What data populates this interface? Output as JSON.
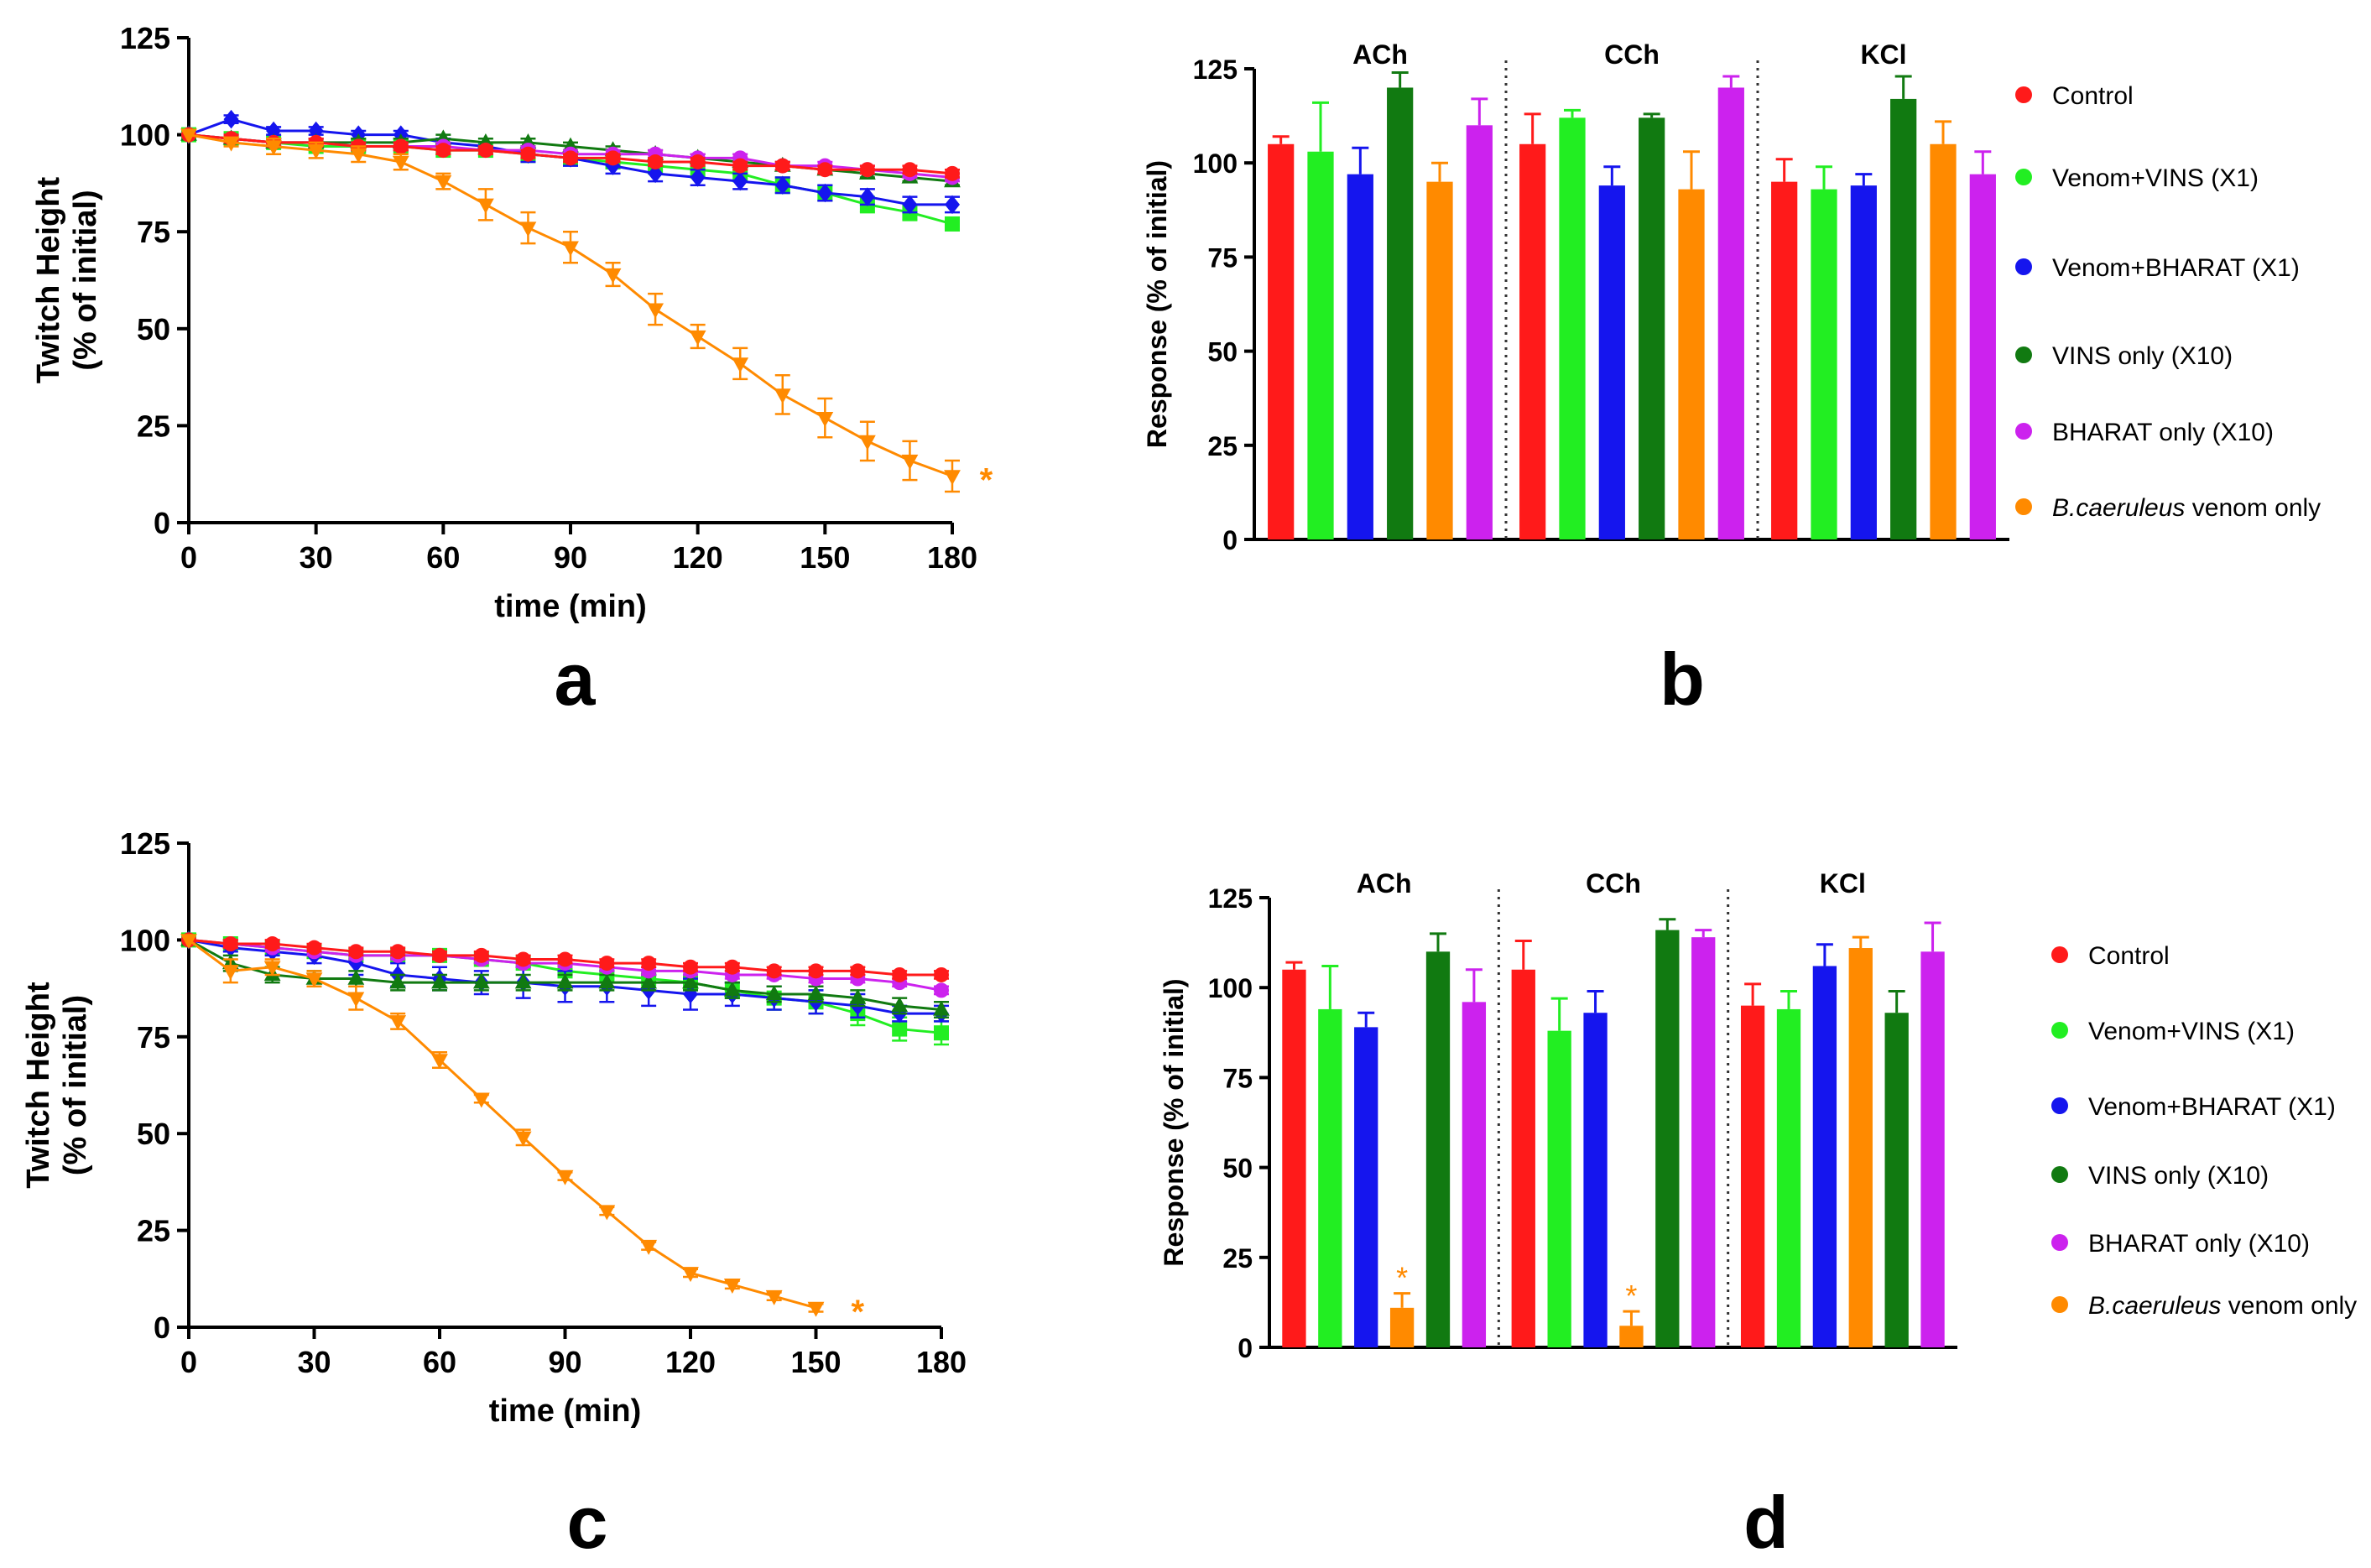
{
  "colors": {
    "control": "#ff1a1a",
    "venom_vins": "#22ee22",
    "venom_bharat": "#1515ee",
    "vins_only": "#117a11",
    "bharat_only": "#cc22ee",
    "venom_only": "#ff8a00",
    "axis": "#000000"
  },
  "chart_data": [
    {
      "type": "line",
      "panel_label": "a",
      "xlabel": "time (min)",
      "ylabel_line1": "Twitch Height",
      "ylabel_line2": "(% of initial)",
      "xlim": [
        0,
        180
      ],
      "ylim": [
        0,
        125
      ],
      "xticks": [
        "0",
        "30",
        "60",
        "90",
        "120",
        "150",
        "180"
      ],
      "yticks": [
        "0",
        "25",
        "50",
        "75",
        "100",
        "125"
      ],
      "x": [
        0,
        10,
        20,
        30,
        40,
        50,
        60,
        70,
        80,
        90,
        100,
        110,
        120,
        130,
        140,
        150,
        160,
        170,
        180
      ],
      "series": [
        {
          "name": "Venom+VINS (X1)",
          "color_key": "venom_vins",
          "marker": "square",
          "values": [
            100,
            99,
            98,
            97,
            97,
            97,
            96,
            96,
            95,
            94,
            93,
            92,
            91,
            90,
            87,
            85,
            82,
            80,
            77
          ],
          "errors": [
            0,
            1,
            1,
            1,
            1,
            1,
            1,
            1,
            2,
            1,
            1,
            2,
            2,
            2,
            2,
            2,
            2,
            2,
            1
          ]
        },
        {
          "name": "Venom+BHARAT (X1)",
          "color_key": "venom_bharat",
          "marker": "diamond",
          "values": [
            100,
            104,
            101,
            101,
            100,
            100,
            98,
            97,
            95,
            94,
            92,
            90,
            89,
            88,
            87,
            85,
            84,
            82,
            82
          ],
          "errors": [
            0,
            1,
            1,
            1,
            1,
            1,
            1,
            1,
            2,
            2,
            2,
            2,
            2,
            2,
            2,
            2,
            2,
            2,
            2
          ]
        },
        {
          "name": "VINS only (X10)",
          "color_key": "vins_only",
          "marker": "triangle",
          "values": [
            100,
            99,
            98,
            98,
            98,
            98,
            99,
            98,
            98,
            97,
            96,
            95,
            94,
            93,
            92,
            91,
            90,
            89,
            88
          ],
          "errors": [
            0,
            1,
            1,
            1,
            1,
            1,
            1,
            1,
            1,
            1,
            1,
            1,
            1,
            1,
            1,
            1,
            1,
            1,
            1
          ]
        },
        {
          "name": "BHARAT only (X10)",
          "color_key": "bharat_only",
          "marker": "circle",
          "values": [
            100,
            99,
            98,
            98,
            97,
            97,
            97,
            96,
            96,
            95,
            95,
            95,
            94,
            94,
            92,
            92,
            91,
            90,
            89
          ],
          "errors": [
            0,
            1,
            1,
            1,
            1,
            1,
            1,
            1,
            1,
            1,
            1,
            1,
            1,
            1,
            1,
            1,
            1,
            1,
            1
          ]
        },
        {
          "name": "Control",
          "color_key": "control",
          "marker": "circle",
          "values": [
            100,
            99,
            98,
            98,
            97,
            97,
            96,
            96,
            95,
            94,
            94,
            93,
            93,
            92,
            92,
            91,
            91,
            91,
            90
          ],
          "errors": [
            0,
            1,
            1,
            1,
            1,
            1,
            1,
            1,
            1,
            1,
            1,
            1,
            1,
            1,
            1,
            1,
            1,
            1,
            1
          ]
        },
        {
          "name": "B.caeruleus venom only",
          "color_key": "venom_only",
          "marker": "triangle-down",
          "values": [
            100,
            98,
            97,
            96,
            95,
            93,
            88,
            82,
            76,
            71,
            64,
            55,
            48,
            41,
            33,
            27,
            21,
            16,
            12
          ],
          "errors": [
            0,
            1,
            2,
            2,
            2,
            2,
            2,
            4,
            4,
            4,
            3,
            4,
            3,
            4,
            5,
            5,
            5,
            5,
            4
          ]
        }
      ],
      "annotations": [
        {
          "text": "*",
          "x": 188,
          "y": 12,
          "color_key": "venom_only"
        }
      ]
    },
    {
      "type": "bar",
      "panel_label": "b",
      "ylabel": "Response (% of initial)",
      "ylim": [
        0,
        125
      ],
      "yticks": [
        "0",
        "25",
        "50",
        "75",
        "100",
        "125"
      ],
      "groups": [
        "ACh",
        "CCh",
        "KCl"
      ],
      "series_order": [
        "control",
        "venom_vins",
        "venom_bharat",
        "vins_only",
        "venom_only",
        "bharat_only"
      ],
      "values": [
        [
          105,
          103,
          97,
          120,
          95,
          110
        ],
        [
          105,
          112,
          94,
          112,
          93,
          120
        ],
        [
          95,
          93,
          94,
          117,
          105,
          97
        ]
      ],
      "errors": [
        [
          2,
          13,
          7,
          4,
          5,
          7
        ],
        [
          8,
          2,
          5,
          1,
          10,
          3
        ],
        [
          6,
          6,
          3,
          6,
          6,
          6
        ]
      ],
      "significance": [],
      "legend": [
        {
          "label": "Control",
          "color_key": "control"
        },
        {
          "label": "Venom+VINS (X1)",
          "color_key": "venom_vins"
        },
        {
          "label": "Venom+BHARAT (X1)",
          "color_key": "venom_bharat"
        },
        {
          "label": "VINS only (X10)",
          "color_key": "vins_only"
        },
        {
          "label": "BHARAT only (X10)",
          "color_key": "bharat_only"
        },
        {
          "label_italic": "B.caeruleus",
          "label_rest": " venom only",
          "color_key": "venom_only"
        }
      ]
    },
    {
      "type": "line",
      "panel_label": "c",
      "xlabel": "time (min)",
      "ylabel_line1": "Twitch Height",
      "ylabel_line2": "(% of initial)",
      "xlim": [
        0,
        180
      ],
      "ylim": [
        0,
        125
      ],
      "xticks": [
        "0",
        "30",
        "60",
        "90",
        "120",
        "150",
        "180"
      ],
      "yticks": [
        "0",
        "25",
        "50",
        "75",
        "100",
        "125"
      ],
      "x": [
        0,
        10,
        20,
        30,
        40,
        50,
        60,
        70,
        80,
        90,
        100,
        110,
        120,
        130,
        140,
        150,
        160,
        170,
        180
      ],
      "series": [
        {
          "name": "Venom+VINS (X1)",
          "color_key": "venom_vins",
          "marker": "square",
          "values": [
            100,
            99,
            98,
            97,
            96,
            96,
            96,
            95,
            94,
            92,
            91,
            90,
            89,
            87,
            85,
            84,
            81,
            77,
            76
          ],
          "errors": [
            0,
            1,
            1,
            1,
            1,
            1,
            1,
            1,
            1,
            1,
            1,
            1,
            2,
            2,
            3,
            3,
            3,
            3,
            3
          ]
        },
        {
          "name": "Venom+BHARAT (X1)",
          "color_key": "venom_bharat",
          "marker": "diamond",
          "values": [
            100,
            98,
            97,
            96,
            94,
            91,
            90,
            89,
            89,
            88,
            88,
            87,
            86,
            86,
            85,
            84,
            83,
            81,
            81
          ],
          "errors": [
            0,
            1,
            1,
            2,
            3,
            3,
            3,
            3,
            4,
            4,
            4,
            4,
            4,
            3,
            3,
            3,
            3,
            2,
            2
          ]
        },
        {
          "name": "VINS only (X10)",
          "color_key": "vins_only",
          "marker": "triangle",
          "values": [
            100,
            94,
            91,
            90,
            90,
            89,
            89,
            89,
            89,
            89,
            89,
            89,
            89,
            87,
            86,
            86,
            85,
            83,
            82
          ],
          "errors": [
            0,
            2,
            2,
            2,
            2,
            2,
            2,
            2,
            2,
            2,
            2,
            2,
            2,
            2,
            2,
            2,
            2,
            2,
            2
          ]
        },
        {
          "name": "BHARAT only (X10)",
          "color_key": "bharat_only",
          "marker": "circle",
          "values": [
            100,
            99,
            98,
            97,
            96,
            96,
            96,
            95,
            94,
            94,
            93,
            92,
            92,
            91,
            91,
            90,
            90,
            89,
            87
          ],
          "errors": [
            0,
            1,
            1,
            1,
            1,
            1,
            1,
            1,
            1,
            1,
            1,
            1,
            1,
            1,
            1,
            1,
            1,
            1,
            1
          ]
        },
        {
          "name": "Control",
          "color_key": "control",
          "marker": "circle",
          "values": [
            100,
            99,
            99,
            98,
            97,
            97,
            96,
            96,
            95,
            95,
            94,
            94,
            93,
            93,
            92,
            92,
            92,
            91,
            91
          ],
          "errors": [
            0,
            1,
            1,
            1,
            1,
            1,
            1,
            1,
            1,
            1,
            1,
            1,
            1,
            1,
            1,
            1,
            1,
            1,
            1
          ]
        },
        {
          "name": "B.caeruleus venom only",
          "color_key": "venom_only",
          "marker": "triangle-down",
          "x": [
            0,
            10,
            20,
            30,
            40,
            50,
            60,
            70,
            80,
            90,
            100,
            110,
            120,
            130,
            140,
            150
          ],
          "values": [
            100,
            92,
            93,
            90,
            85,
            79,
            69,
            59,
            49,
            39,
            30,
            21,
            14,
            11,
            8,
            5
          ],
          "errors": [
            0,
            3,
            2,
            2,
            3,
            2,
            2,
            1,
            2,
            1,
            1,
            1,
            1,
            1,
            1,
            1
          ]
        }
      ],
      "annotations": [
        {
          "text": "*",
          "x": 160,
          "y": 5,
          "color_key": "venom_only"
        }
      ]
    },
    {
      "type": "bar",
      "panel_label": "d",
      "ylabel": "Response (% of initial)",
      "ylim": [
        0,
        125
      ],
      "yticks": [
        "0",
        "25",
        "50",
        "75",
        "100",
        "125"
      ],
      "groups": [
        "ACh",
        "CCh",
        "KCl"
      ],
      "series_order": [
        "control",
        "venom_vins",
        "venom_bharat",
        "venom_only",
        "vins_only",
        "bharat_only"
      ],
      "values": [
        [
          105,
          94,
          89,
          11,
          110,
          96
        ],
        [
          105,
          88,
          93,
          6,
          116,
          114
        ],
        [
          95,
          94,
          106,
          111,
          93,
          110
        ]
      ],
      "errors": [
        [
          2,
          12,
          4,
          4,
          5,
          9
        ],
        [
          8,
          9,
          6,
          4,
          3,
          2
        ],
        [
          6,
          5,
          6,
          3,
          6,
          8
        ]
      ],
      "significance": [
        {
          "group": 0,
          "bar": 3,
          "text": "*"
        },
        {
          "group": 1,
          "bar": 3,
          "text": "*"
        }
      ],
      "legend": [
        {
          "label": "Control",
          "color_key": "control"
        },
        {
          "label": "Venom+VINS  (X1)",
          "color_key": "venom_vins"
        },
        {
          "label": "Venom+BHARAT (X1)",
          "color_key": "venom_bharat"
        },
        {
          "label": "VINS only (X10)",
          "color_key": "vins_only"
        },
        {
          "label": "BHARAT only (X10)",
          "color_key": "bharat_only"
        },
        {
          "label_italic": "B.caeruleus",
          "label_rest": " venom only",
          "color_key": "venom_only"
        }
      ]
    }
  ]
}
